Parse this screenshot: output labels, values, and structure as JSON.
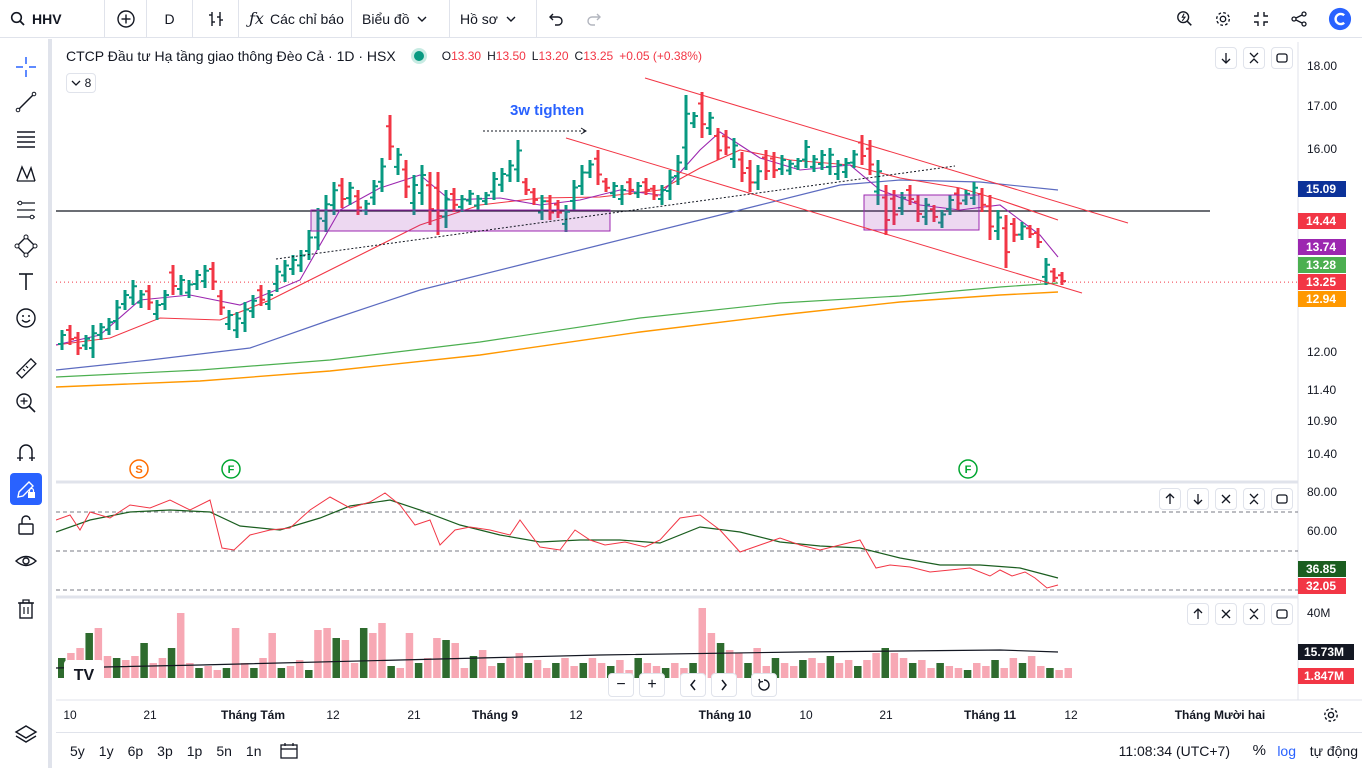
{
  "toolbar": {
    "symbol": "HHV",
    "interval": "D",
    "indicators_label": "Các chỉ báo",
    "layout_label": "Biểu đồ",
    "profile_label": "Hồ sơ"
  },
  "legend": {
    "title": "CTCP Đầu tư Hạ tầng giao thông Đèo Cả · 1D · HSX",
    "open_key": "O",
    "open": "13.30",
    "high_key": "H",
    "high": "13.50",
    "low_key": "L",
    "low": "13.20",
    "close_key": "C",
    "close": "13.25",
    "change": "+0.05 (+0.38%)",
    "collapse_count": "8"
  },
  "annotation_text": "3w tighten",
  "markers": {
    "s": "S",
    "f": "F"
  },
  "price_axis": {
    "ticks": [
      "18.00",
      "17.00",
      "16.00",
      "12.00",
      "11.40",
      "10.90",
      "10.40"
    ],
    "badges": [
      {
        "label": "15.09",
        "color": "#0c3299"
      },
      {
        "label": "14.44",
        "color": "#f23645"
      },
      {
        "label": "13.74",
        "color": "#9c27b0"
      },
      {
        "label": "13.28",
        "color": "#4caf50"
      },
      {
        "label": "13.25",
        "color": "#f23645"
      },
      {
        "label": "12.94",
        "color": "#ff9800"
      }
    ]
  },
  "rsi_axis": {
    "ticks": [
      "80.00",
      "60.00"
    ],
    "badges": [
      {
        "label": "36.85",
        "color": "#1b5e20"
      },
      {
        "label": "32.05",
        "color": "#f23645"
      }
    ]
  },
  "volume_axis": {
    "ticks": [
      "40M"
    ],
    "badges": [
      {
        "label": "15.73M",
        "color": "#131722"
      },
      {
        "label": "1.847M",
        "color": "#f23645"
      }
    ]
  },
  "time_axis": [
    "10",
    "21",
    "Tháng Tám",
    "12",
    "21",
    "Tháng 9",
    "12",
    "Tháng 10",
    "10",
    "21",
    "Tháng 11",
    "12",
    "Tháng Mười hai"
  ],
  "timeframes": [
    "5y",
    "1y",
    "6p",
    "3p",
    "1p",
    "5n",
    "1n"
  ],
  "clock": "11:08:34 (UTC+7)",
  "percent_label": "%",
  "log_label": "log",
  "auto_label": "tự động",
  "colors": {
    "up": "#089981",
    "down": "#f23645",
    "upVolume": "#2e6b2e",
    "downVolume": "#f7a8b4",
    "accent": "#2962ff"
  }
}
